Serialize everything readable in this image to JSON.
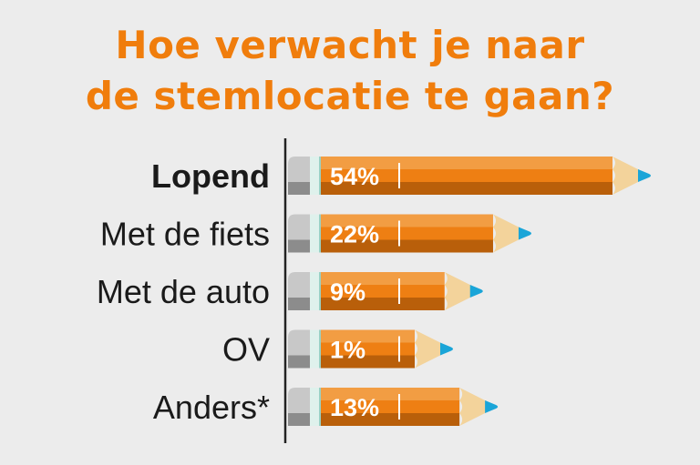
{
  "title": {
    "line1": "Hoe verwacht je naar",
    "line2": "de stemlocatie te gaan?"
  },
  "colors": {
    "title": "#f07d0c",
    "pencil_light": "#f29d43",
    "pencil_mid": "#ee7f13",
    "pencil_dark": "#b95f0a",
    "eraser_light": "#c8c8c8",
    "eraser_dark": "#8c8c8c",
    "wood": "#f3d39b",
    "lead": "#1aa5d8",
    "axis": "#222222"
  },
  "chart_data": {
    "type": "bar",
    "orientation": "horizontal",
    "title": "Hoe verwacht je naar de stemlocatie te gaan?",
    "categories": [
      "Lopend",
      "Met de fiets",
      "Met de auto",
      "OV",
      "Anders*"
    ],
    "values": [
      54,
      22,
      9,
      1,
      13
    ],
    "value_labels": [
      "54%",
      "22%",
      "9%",
      "1%",
      "13%"
    ],
    "highlighted_category": "Lopend",
    "unit": "%"
  }
}
